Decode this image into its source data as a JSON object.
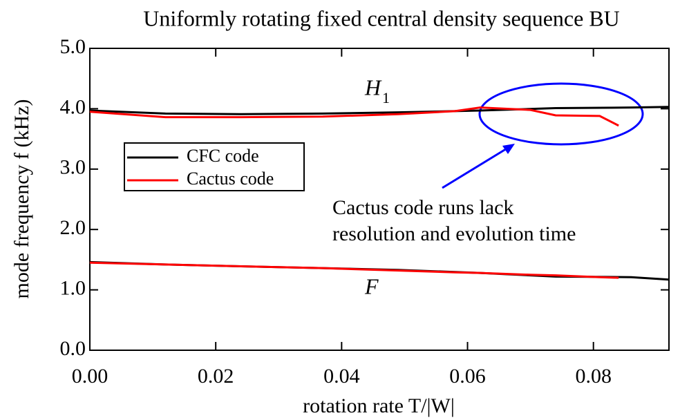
{
  "chart_data": {
    "type": "line",
    "title": "Uniformly rotating fixed central density sequence BU",
    "xlabel": "rotation rate T/|W|",
    "ylabel": "mode frequency f (kHz)",
    "xlim": [
      0,
      0.092
    ],
    "ylim": [
      0,
      5
    ],
    "xticks": [
      {
        "value": 0,
        "label": "0.00"
      },
      {
        "value": 0.02,
        "label": "0.02"
      },
      {
        "value": 0.04,
        "label": "0.04"
      },
      {
        "value": 0.06,
        "label": "0.06"
      },
      {
        "value": 0.08,
        "label": "0.08"
      }
    ],
    "yticks": [
      {
        "value": 0,
        "label": "0.0"
      },
      {
        "value": 1,
        "label": "1.0"
      },
      {
        "value": 2,
        "label": "2.0"
      },
      {
        "value": 3,
        "label": "3.0"
      },
      {
        "value": 4,
        "label": "4.0"
      },
      {
        "value": 5,
        "label": "5.0"
      }
    ],
    "legend": "upper left",
    "series": [
      {
        "name": "CFC code",
        "color": "#000000",
        "x": [
          0,
          0.012,
          0.024,
          0.037,
          0.049,
          0.062,
          0.074,
          0.086,
          0.092,
          null,
          0,
          0.012,
          0.024,
          0.037,
          0.049,
          0.062,
          0.074,
          0.086,
          0.092
        ],
        "values": [
          3.97,
          3.92,
          3.91,
          3.92,
          3.94,
          3.97,
          4.01,
          4.02,
          4.03,
          null,
          1.46,
          1.42,
          1.39,
          1.36,
          1.33,
          1.28,
          1.22,
          1.21,
          1.17
        ]
      },
      {
        "name": "Cactus code",
        "color": "#ff0000",
        "x": [
          0,
          0.012,
          0.024,
          0.037,
          0.049,
          0.058,
          0.062,
          0.07,
          0.074,
          0.081,
          0.084,
          null,
          0,
          0.012,
          0.024,
          0.037,
          0.049,
          0.058,
          0.062,
          0.07,
          0.074,
          0.081,
          0.084
        ],
        "values": [
          3.95,
          3.86,
          3.86,
          3.87,
          3.91,
          3.96,
          4.02,
          3.98,
          3.89,
          3.88,
          3.72,
          null,
          1.45,
          1.42,
          1.39,
          1.36,
          1.32,
          1.29,
          1.28,
          1.25,
          1.24,
          1.21,
          1.2
        ]
      }
    ],
    "annotations": {
      "h1": {
        "text": "H",
        "sub": "1"
      },
      "f": "F",
      "note": [
        "Cactus code runs lack",
        "resolution and evolution time"
      ]
    }
  }
}
